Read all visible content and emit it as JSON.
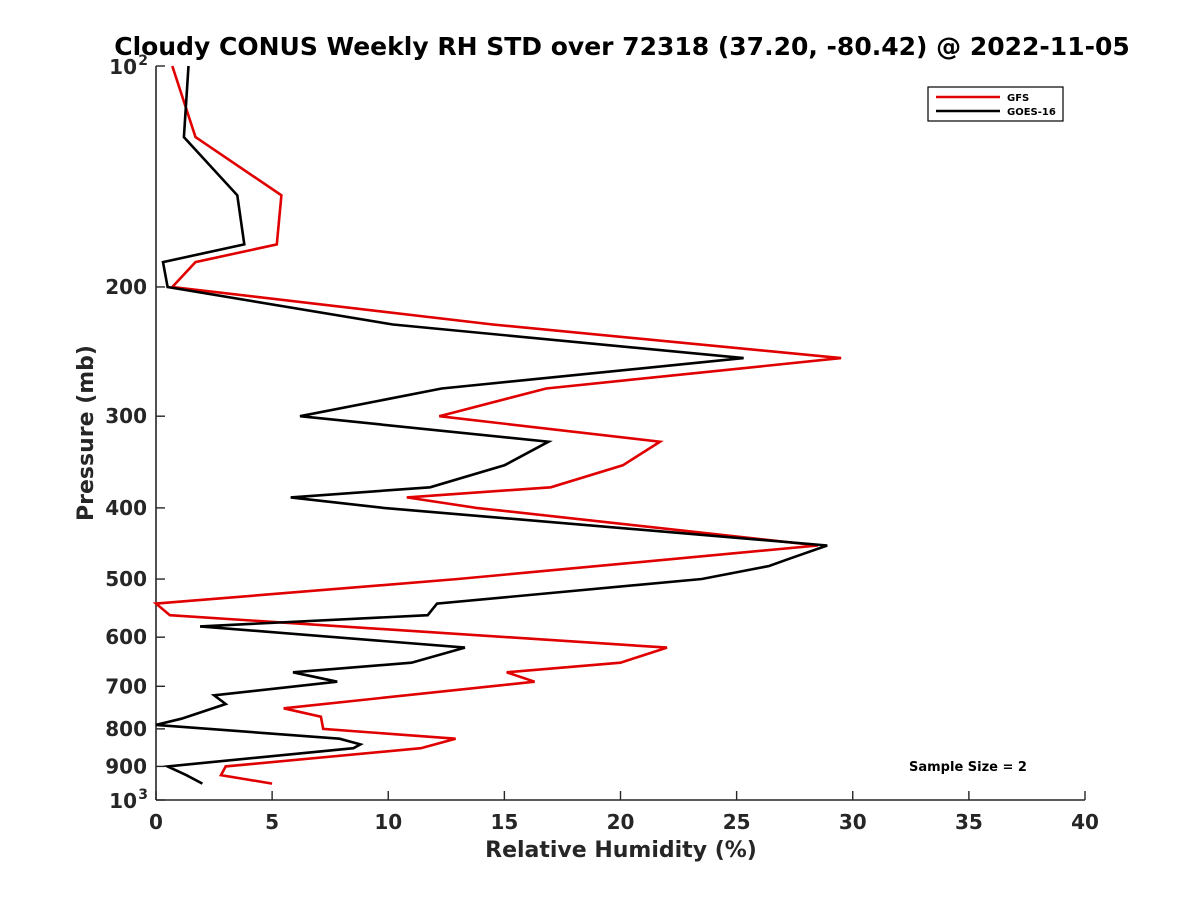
{
  "chart_data": {
    "type": "line",
    "title": "Cloudy CONUS Weekly RH STD over 72318 (37.20, -80.42) @ 2022-11-05",
    "xlabel": "Relative Humidity (%)",
    "ylabel": "Pressure (mb)",
    "xlim": [
      0,
      40
    ],
    "ylim": [
      100,
      1000
    ],
    "yscale": "log",
    "y_reversed": true,
    "x_ticks": [
      0,
      5,
      10,
      15,
      20,
      25,
      30,
      35,
      40
    ],
    "y_ticks": [
      200,
      300,
      400,
      500,
      600,
      700,
      800,
      900
    ],
    "y_tick_base_labels": [
      {
        "value": 100,
        "base": "10",
        "exp": "2"
      },
      {
        "value": 1000,
        "base": "10",
        "exp": "3"
      }
    ],
    "grid": false,
    "legend_position": "top-right",
    "annotation": "Sample Size = 2",
    "series": [
      {
        "name": "GFS",
        "color": "#e00000",
        "points": [
          [
            0.7,
            100
          ],
          [
            1.7,
            125
          ],
          [
            5.4,
            150
          ],
          [
            5.2,
            175
          ],
          [
            1.7,
            185
          ],
          [
            0.7,
            200
          ],
          [
            14.5,
            225
          ],
          [
            29.5,
            250
          ],
          [
            16.8,
            275
          ],
          [
            12.2,
            300
          ],
          [
            21.7,
            325
          ],
          [
            20.1,
            350
          ],
          [
            17.0,
            375
          ],
          [
            10.8,
            387
          ],
          [
            13.8,
            400
          ],
          [
            28.5,
            450
          ],
          [
            13.0,
            500
          ],
          [
            0.0,
            540
          ],
          [
            0.6,
            560
          ],
          [
            22.0,
            620
          ],
          [
            20.0,
            650
          ],
          [
            15.1,
            670
          ],
          [
            16.3,
            690
          ],
          [
            5.5,
            750
          ],
          [
            7.1,
            770
          ],
          [
            7.2,
            800
          ],
          [
            12.9,
            825
          ],
          [
            11.4,
            850
          ],
          [
            3.0,
            900
          ],
          [
            2.8,
            925
          ],
          [
            5.0,
            950
          ]
        ]
      },
      {
        "name": "GOES-16",
        "color": "#000000",
        "points": [
          [
            1.4,
            100
          ],
          [
            1.2,
            125
          ],
          [
            3.5,
            150
          ],
          [
            3.8,
            175
          ],
          [
            0.3,
            185
          ],
          [
            0.5,
            200
          ],
          [
            10.2,
            225
          ],
          [
            25.3,
            250
          ],
          [
            12.3,
            275
          ],
          [
            6.2,
            300
          ],
          [
            16.9,
            325
          ],
          [
            15.0,
            350
          ],
          [
            11.8,
            375
          ],
          [
            5.8,
            387
          ],
          [
            9.8,
            400
          ],
          [
            28.9,
            450
          ],
          [
            27.2,
            470
          ],
          [
            26.4,
            480
          ],
          [
            23.5,
            500
          ],
          [
            12.1,
            540
          ],
          [
            11.7,
            560
          ],
          [
            1.9,
            580
          ],
          [
            13.3,
            620
          ],
          [
            11.0,
            650
          ],
          [
            5.9,
            670
          ],
          [
            7.8,
            690
          ],
          [
            2.5,
            720
          ],
          [
            3.0,
            740
          ],
          [
            1.1,
            775
          ],
          [
            0.0,
            790
          ],
          [
            7.9,
            825
          ],
          [
            8.8,
            840
          ],
          [
            8.5,
            850
          ],
          [
            0.5,
            900
          ],
          [
            1.3,
            925
          ],
          [
            2.0,
            950
          ]
        ]
      }
    ]
  }
}
